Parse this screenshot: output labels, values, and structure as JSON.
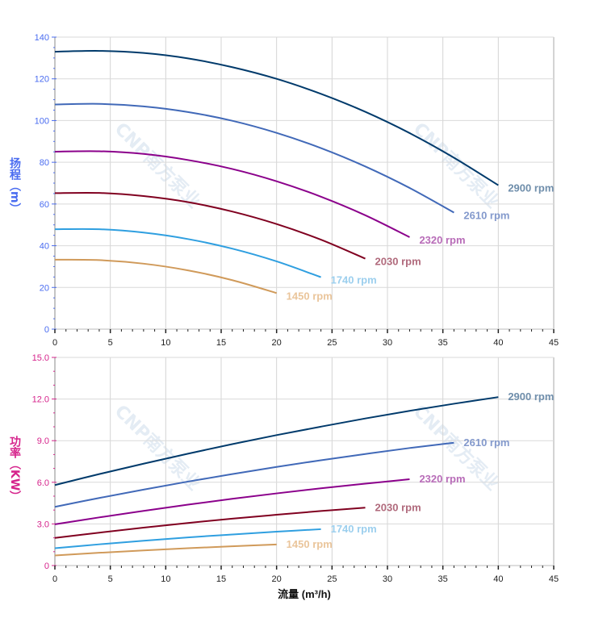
{
  "watermark": "CNP南方泵业",
  "chart_data": [
    {
      "type": "line",
      "ylabel": "扬程（m）",
      "ylabel_chars": [
        "扬",
        "程",
        "(m)"
      ],
      "axis_color": "#4a6cf0",
      "xlim": [
        0,
        45
      ],
      "ylim": [
        0,
        140
      ],
      "xticks": [
        0,
        5,
        10,
        15,
        20,
        25,
        30,
        35,
        40,
        45
      ],
      "yticks": [
        0,
        20,
        40,
        60,
        80,
        100,
        120,
        140
      ],
      "ytick_labels": [
        "0",
        "20",
        "40",
        "60",
        "80",
        "100",
        "120",
        "140"
      ],
      "grid": true,
      "series": [
        {
          "name": "2900 rpm",
          "color": "#003a6b",
          "label_color": "#6f8eab",
          "x": [
            0,
            4,
            8,
            12,
            16,
            20,
            24,
            28,
            32,
            36,
            40
          ],
          "y": [
            133.0,
            133.4,
            132.4,
            129.8,
            125.6,
            120.0,
            112.8,
            104.2,
            94.0,
            82.2,
            69.0
          ]
        },
        {
          "name": "2610 rpm",
          "color": "#4169b8",
          "label_color": "#8399cc",
          "x": [
            0,
            4,
            8,
            12,
            16,
            20,
            24,
            28,
            32,
            36
          ],
          "y": [
            107.7,
            108.0,
            106.8,
            104.1,
            99.9,
            94.1,
            86.8,
            78.0,
            67.7,
            55.9
          ]
        },
        {
          "name": "2320 rpm",
          "color": "#8b008b",
          "label_color": "#b86cb8",
          "x": [
            0,
            4,
            8,
            12,
            16,
            20,
            24,
            28,
            32
          ],
          "y": [
            85.1,
            85.3,
            84.0,
            81.1,
            76.8,
            70.9,
            63.5,
            54.6,
            44.1
          ]
        },
        {
          "name": "2030 rpm",
          "color": "#800020",
          "label_color": "#b06a7c",
          "x": [
            0,
            4,
            8,
            12,
            16,
            20,
            24,
            28
          ],
          "y": [
            65.2,
            65.3,
            63.8,
            60.9,
            56.4,
            50.4,
            42.9,
            33.8
          ]
        },
        {
          "name": "1740 rpm",
          "color": "#2f9fe0",
          "label_color": "#9ccfee",
          "x": [
            0,
            4,
            8,
            12,
            16,
            20,
            24
          ],
          "y": [
            47.9,
            47.9,
            46.3,
            43.2,
            38.6,
            32.5,
            24.9
          ]
        },
        {
          "name": "1450 rpm",
          "color": "#d09a5a",
          "label_color": "#eac59b",
          "x": [
            0,
            4,
            8,
            12,
            16,
            20
          ],
          "y": [
            33.3,
            33.1,
            31.4,
            28.2,
            23.5,
            17.3
          ]
        }
      ]
    },
    {
      "type": "line",
      "xlabel": "流量 (m³/h)",
      "ylabel": "功率（KW）",
      "ylabel_chars": [
        "功",
        "率",
        "(KW)"
      ],
      "axis_color": "#d6248c",
      "xlim": [
        0,
        45
      ],
      "ylim": [
        0,
        15
      ],
      "xticks": [
        0,
        5,
        10,
        15,
        20,
        25,
        30,
        35,
        40,
        45
      ],
      "yticks": [
        0,
        3,
        6,
        9,
        12,
        15
      ],
      "ytick_labels": [
        "0",
        "3.0",
        "6.0",
        "9.0",
        "12.0",
        "15.0"
      ],
      "grid": true,
      "series": [
        {
          "name": "2900 rpm",
          "color": "#003a6b",
          "label_color": "#6f8eab",
          "x": [
            0,
            4,
            8,
            12,
            16,
            20,
            24,
            28,
            32,
            36,
            40
          ],
          "y": [
            5.8,
            6.59,
            7.34,
            8.06,
            8.75,
            9.4,
            10.01,
            10.6,
            11.15,
            11.66,
            12.14
          ]
        },
        {
          "name": "2610 rpm",
          "color": "#4169b8",
          "label_color": "#8399cc",
          "x": [
            0,
            4,
            8,
            12,
            16,
            20,
            24,
            28,
            32,
            36
          ],
          "y": [
            4.23,
            4.87,
            5.47,
            6.05,
            6.59,
            7.11,
            7.59,
            8.04,
            8.47,
            8.85
          ]
        },
        {
          "name": "2320 rpm",
          "color": "#8b008b",
          "label_color": "#b86cb8",
          "x": [
            0,
            4,
            8,
            12,
            16,
            20,
            24,
            28,
            32
          ],
          "y": [
            2.97,
            3.47,
            3.94,
            4.39,
            4.81,
            5.2,
            5.57,
            5.9,
            6.22
          ]
        },
        {
          "name": "2030 rpm",
          "color": "#800020",
          "label_color": "#b06a7c",
          "x": [
            0,
            4,
            8,
            12,
            16,
            20,
            24,
            28
          ],
          "y": [
            1.99,
            2.37,
            2.73,
            3.07,
            3.38,
            3.66,
            3.93,
            4.17
          ]
        },
        {
          "name": "1740 rpm",
          "color": "#2f9fe0",
          "label_color": "#9ccfee",
          "x": [
            0,
            4,
            8,
            12,
            16,
            20,
            24
          ],
          "y": [
            1.25,
            1.53,
            1.79,
            2.03,
            2.24,
            2.44,
            2.62
          ]
        },
        {
          "name": "1450 rpm",
          "color": "#d09a5a",
          "label_color": "#eac59b",
          "x": [
            0,
            4,
            8,
            12,
            16,
            20
          ],
          "y": [
            0.73,
            0.92,
            1.09,
            1.25,
            1.39,
            1.52
          ]
        }
      ]
    }
  ]
}
